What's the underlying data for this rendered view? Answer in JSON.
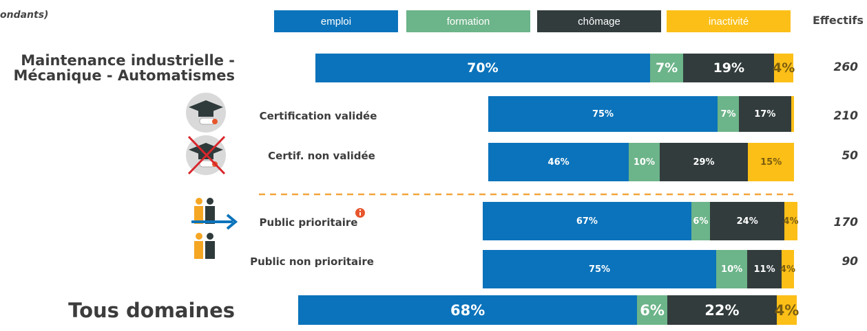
{
  "chart_data": {
    "type": "bar",
    "orientation": "horizontal",
    "stacked": true,
    "subtitle": "ondants)",
    "categories": [
      "Maintenance industrielle -\nMécanique - Automatismes",
      "Certification validée",
      "Certif. non validée",
      "Public prioritaire",
      "Public non prioritaire",
      "Tous domaines"
    ],
    "xlim": [
      0,
      100
    ],
    "series": [
      {
        "name": "emploi",
        "color": "#0b73bb",
        "values": [
          70,
          75,
          46,
          67,
          75,
          68
        ],
        "value_labels": [
          "70%",
          "75%",
          "46%",
          "67%",
          "75%",
          "68%"
        ]
      },
      {
        "name": "formation",
        "color": "#6cb489",
        "values": [
          7,
          7,
          10,
          6,
          10,
          6
        ],
        "value_labels": [
          "7%",
          "7%",
          "10%",
          "6%",
          "10%",
          "6%"
        ]
      },
      {
        "name": "chômage",
        "color": "#323c3d",
        "values": [
          19,
          17,
          29,
          24,
          11,
          22
        ],
        "value_labels": [
          "19%",
          "17%",
          "29%",
          "24%",
          "11%",
          "22%"
        ]
      },
      {
        "name": "inactivité",
        "color": "#fcbf17",
        "label_color": "#7a5d10",
        "values": [
          4,
          1,
          15,
          4,
          4,
          4
        ],
        "value_labels": [
          "4%",
          null,
          "15%",
          "4%",
          "4%",
          "4%"
        ]
      }
    ],
    "effectifs": {
      "label": "Effectifs",
      "values": [
        260,
        210,
        50,
        170,
        90,
        null
      ]
    }
  }
}
